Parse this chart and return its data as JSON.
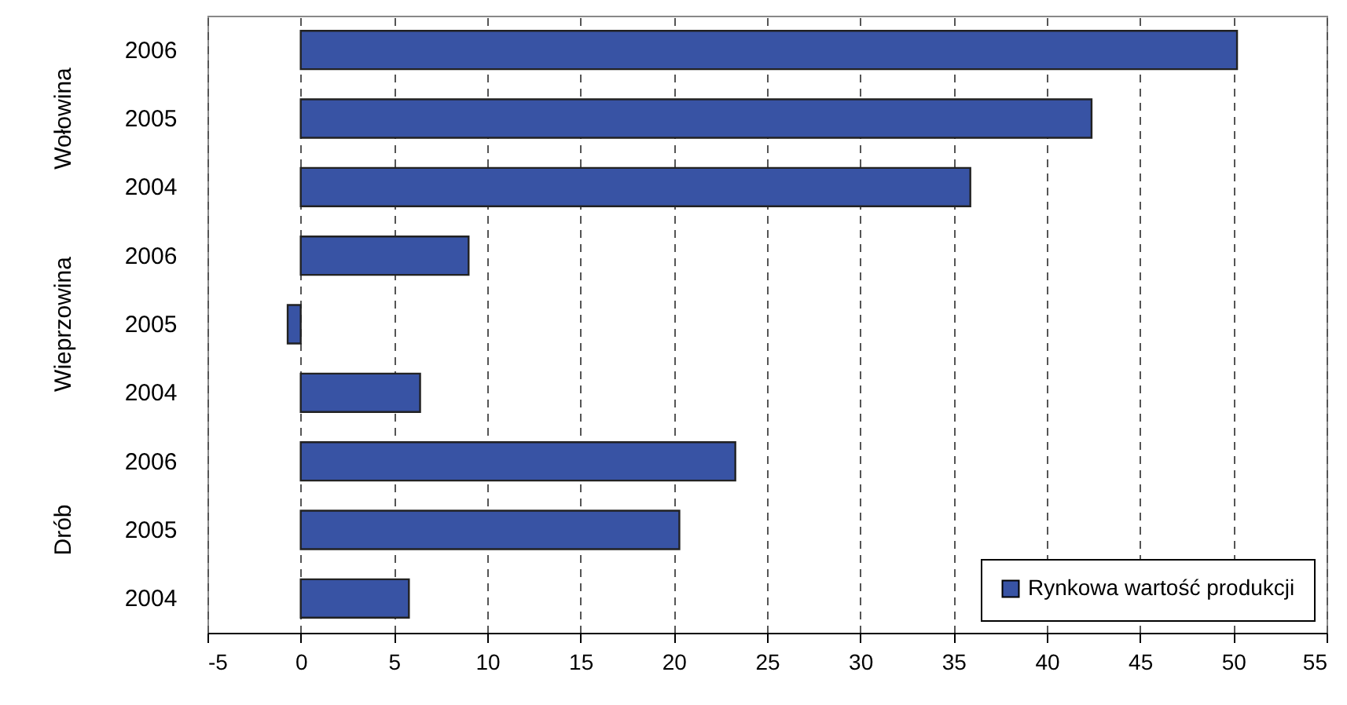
{
  "chart_data": {
    "type": "bar",
    "orientation": "horizontal",
    "categories": [
      "2006",
      "2005",
      "2004",
      "2006",
      "2005",
      "2004",
      "2006",
      "2005",
      "2004"
    ],
    "series": [
      {
        "name": "Rynkowa wartość produkcji",
        "color": "#3853a4",
        "values": [
          50.2,
          42.4,
          35.9,
          9.0,
          -0.7,
          6.4,
          23.3,
          20.3,
          5.8
        ]
      }
    ],
    "annotations": [
      "Wołowina",
      "Wieprzowina",
      "Drób"
    ],
    "xlim": [
      -5,
      55
    ],
    "xticks": [
      -5,
      0,
      5,
      10,
      15,
      20,
      25,
      30,
      35,
      40,
      45,
      50,
      55
    ],
    "grid": "x",
    "legend": "bottom right"
  }
}
